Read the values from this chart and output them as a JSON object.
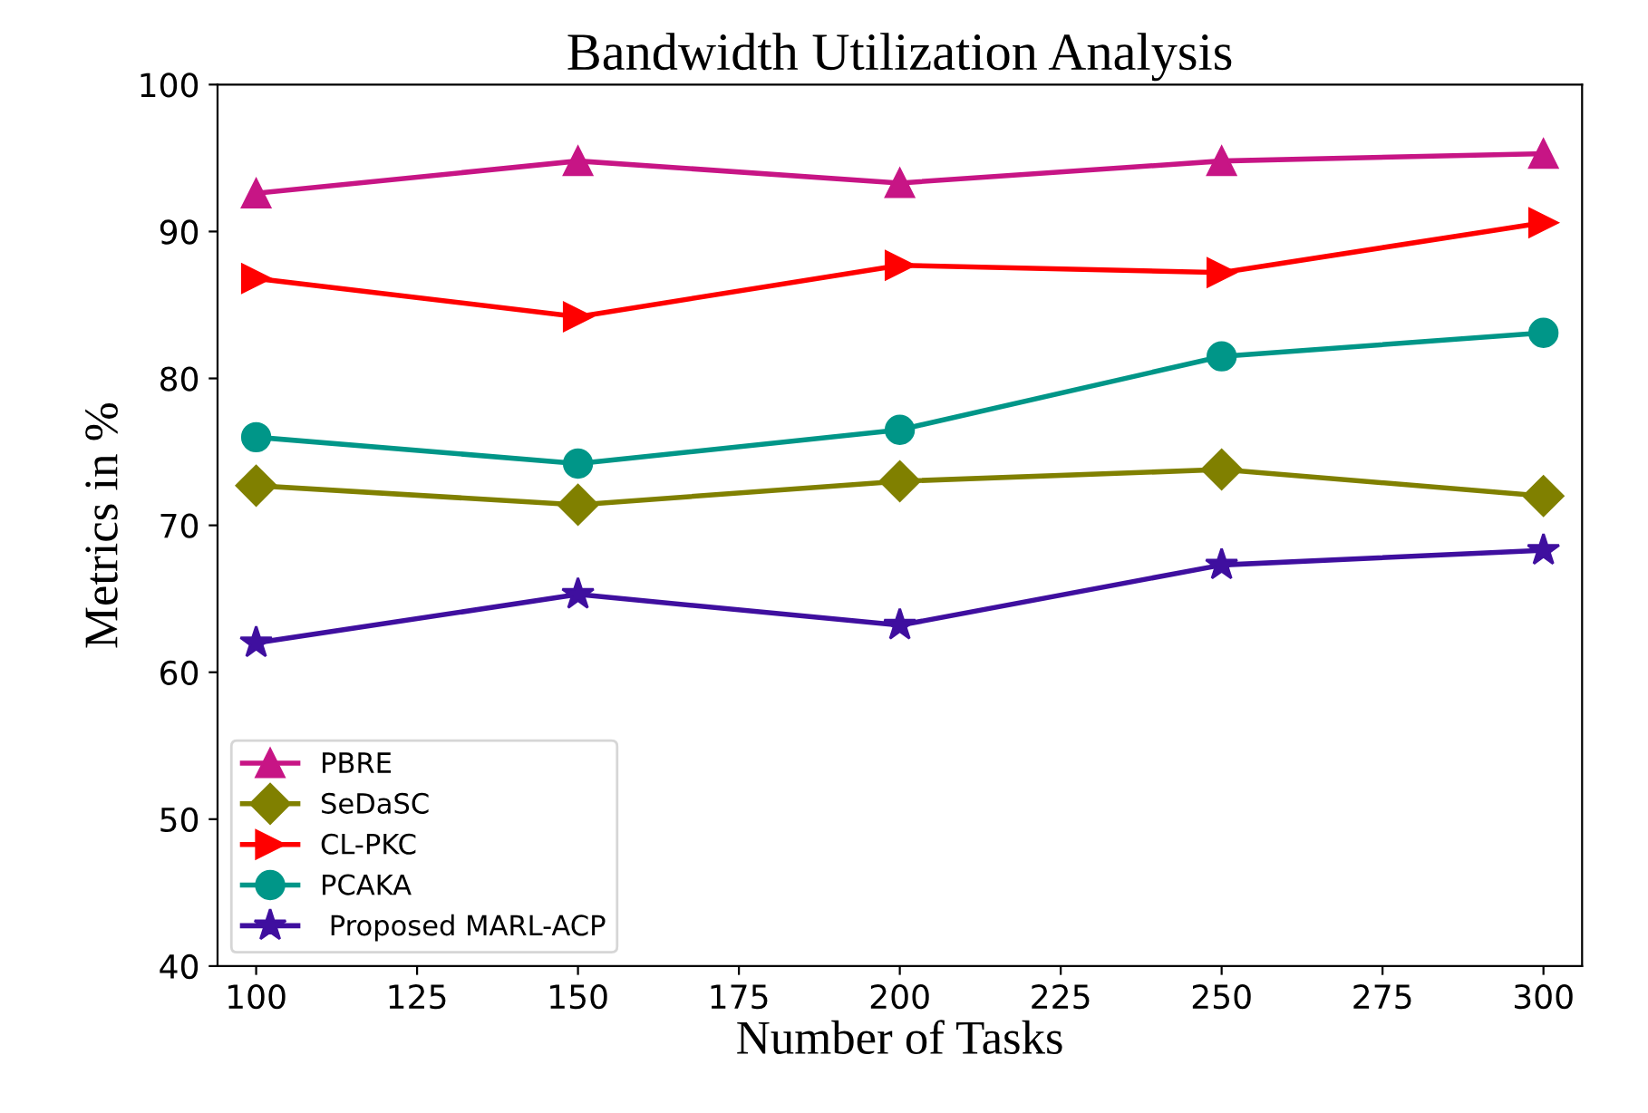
{
  "chart_data": {
    "type": "line",
    "title": "Bandwidth Utilization Analysis",
    "xlabel": "Number of Tasks",
    "ylabel": "Metrics in %",
    "x": [
      100,
      150,
      200,
      250,
      300
    ],
    "xlim": [
      94,
      306
    ],
    "xticks": [
      100,
      125,
      150,
      175,
      200,
      225,
      250,
      275,
      300
    ],
    "ylim": [
      40,
      100
    ],
    "yticks": [
      40,
      50,
      60,
      70,
      80,
      90,
      100
    ],
    "grid": false,
    "legend": "bottom left",
    "line_style": "solid",
    "series": [
      {
        "name": "PBRE",
        "color": "#c71585",
        "marker": "triangle",
        "values": [
          92.6,
          94.8,
          93.3,
          94.8,
          95.3
        ]
      },
      {
        "name": "SeDaSC",
        "color": "#808000",
        "marker": "diamond",
        "values": [
          72.7,
          71.4,
          73.0,
          73.8,
          72.0
        ]
      },
      {
        "name": "CL-PKC",
        "color": "#ff0000",
        "marker": "triangle-right",
        "values": [
          86.8,
          84.2,
          87.7,
          87.2,
          90.6
        ]
      },
      {
        "name": "PCAKA",
        "color": "#009688",
        "marker": "circle",
        "values": [
          76.0,
          74.2,
          76.5,
          81.5,
          83.1
        ]
      },
      {
        "name": " Proposed MARL-ACP",
        "color": "#3f0f9f",
        "marker": "star",
        "values": [
          62.0,
          65.3,
          63.2,
          67.3,
          68.3
        ]
      }
    ]
  }
}
